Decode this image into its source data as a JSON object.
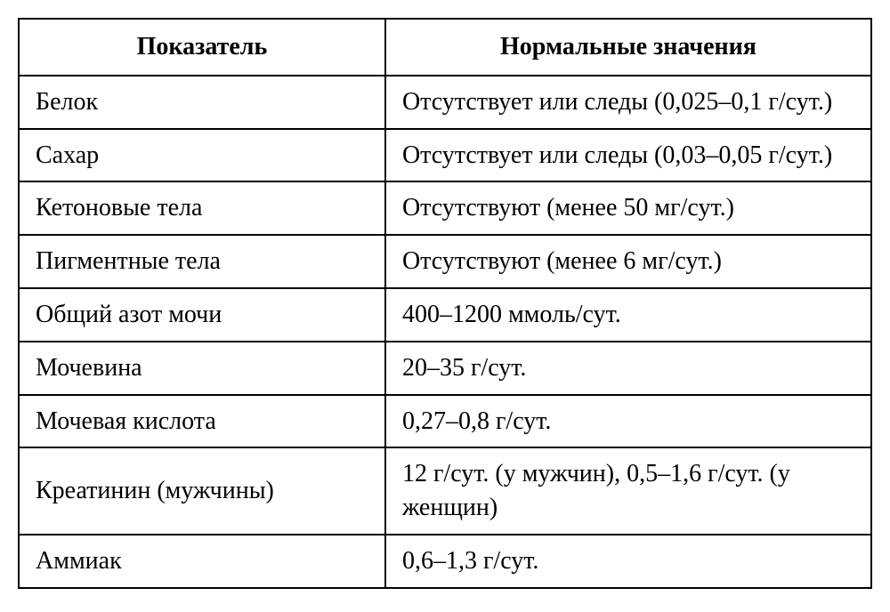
{
  "table": {
    "type": "table",
    "background_color": "#ffffff",
    "border_color": "#000000",
    "border_width": 2,
    "text_color": "#000000",
    "font_family": "Georgia, Times New Roman, serif",
    "header_fontsize": 28,
    "cell_fontsize": 28,
    "header_font_weight": "bold",
    "cell_padding": "10px 18px",
    "column_widths": [
      "43%",
      "57%"
    ],
    "columns": [
      "Показатель",
      "Нормальные значения"
    ],
    "rows": [
      [
        "Белок",
        "Отсутствует или следы (0,025–0,1 г/сут.)"
      ],
      [
        "Сахар",
        "Отсутствует или следы (0,03–0,05 г/сут.)"
      ],
      [
        "Кетоновые тела",
        "Отсутствуют (менее 50 мг/сут.)"
      ],
      [
        "Пигментные тела",
        "Отсутствуют (менее 6 мг/сут.)"
      ],
      [
        "Общий азот мочи",
        "400–1200 ммоль/сут."
      ],
      [
        "Мочевина",
        "20–35 г/сут."
      ],
      [
        "Мочевая кислота",
        "0,27–0,8 г/сут."
      ],
      [
        "Креатинин (мужчины)",
        "12 г/сут. (у мужчин), 0,5–1,6 г/сут. (у женщин)"
      ],
      [
        "Аммиак",
        "0,6–1,3 г/сут."
      ]
    ]
  }
}
